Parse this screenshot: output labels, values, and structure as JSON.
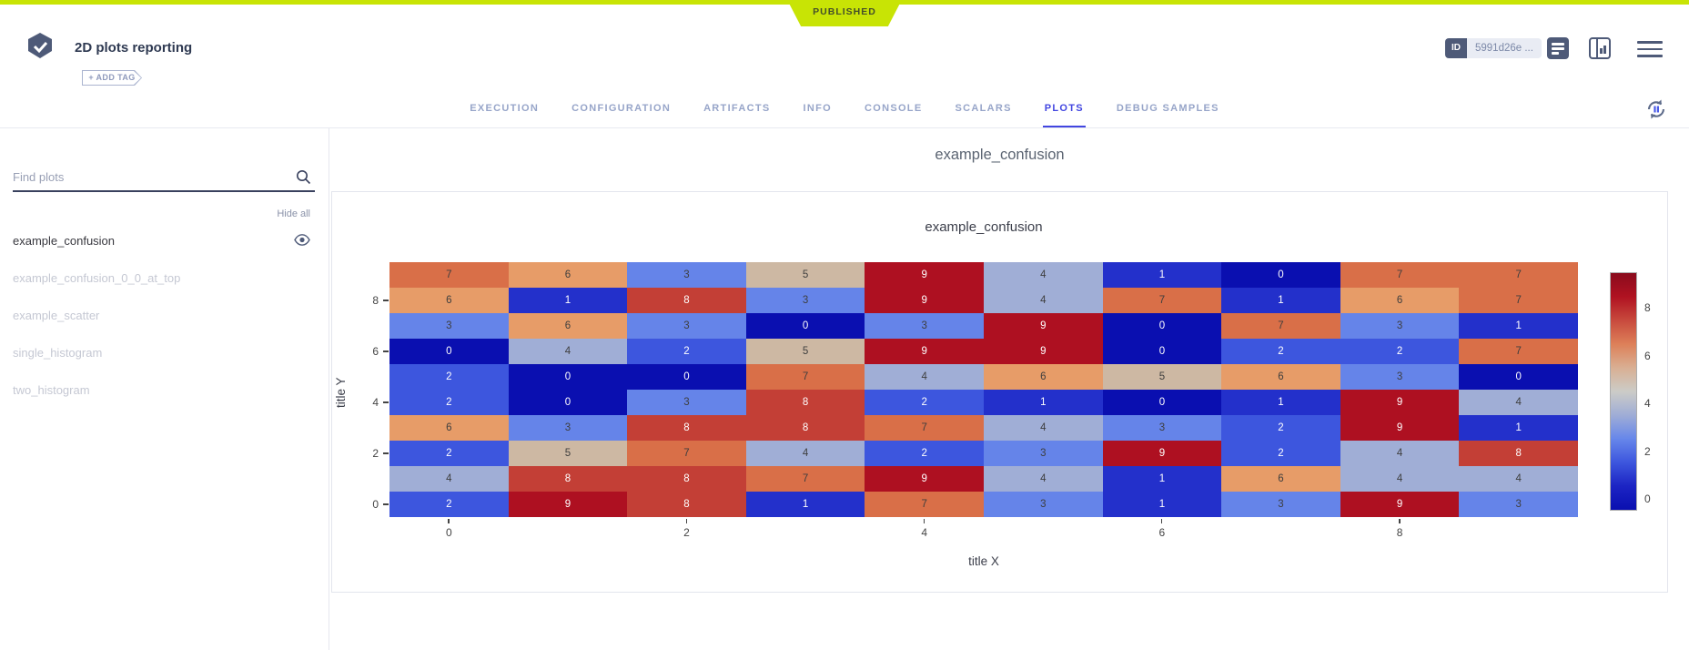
{
  "ribbon": {
    "status": "PUBLISHED",
    "color": "#c8e405"
  },
  "header": {
    "title": "2D plots reporting",
    "add_tag_label": "+ ADD TAG",
    "id_badge": {
      "label": "ID",
      "value": "5991d26e ..."
    }
  },
  "tabs": [
    {
      "label": "EXECUTION",
      "active": false
    },
    {
      "label": "CONFIGURATION",
      "active": false
    },
    {
      "label": "ARTIFACTS",
      "active": false
    },
    {
      "label": "INFO",
      "active": false
    },
    {
      "label": "CONSOLE",
      "active": false
    },
    {
      "label": "SCALARS",
      "active": false
    },
    {
      "label": "PLOTS",
      "active": true
    },
    {
      "label": "DEBUG SAMPLES",
      "active": false
    }
  ],
  "sidebar": {
    "search_placeholder": "Find plots",
    "hide_all_label": "Hide all",
    "items": [
      {
        "label": "example_confusion",
        "active": true,
        "visible": true
      },
      {
        "label": "example_confusion_0_0_at_top",
        "active": false,
        "visible": false
      },
      {
        "label": "example_scatter",
        "active": false,
        "visible": false
      },
      {
        "label": "single_histogram",
        "active": false,
        "visible": false
      },
      {
        "label": "two_histogram",
        "active": false,
        "visible": false
      }
    ]
  },
  "main": {
    "group_title": "example_confusion",
    "chart_data": {
      "type": "heatmap",
      "title": "example_confusion",
      "xlabel": "title X",
      "ylabel": "title Y",
      "x_range": [
        0,
        9
      ],
      "y_range": [
        0,
        9
      ],
      "x_ticks": [
        0,
        2,
        4,
        6,
        8
      ],
      "y_ticks": [
        8,
        6,
        4,
        2,
        0
      ],
      "rows_top_to_bottom_y": [
        9,
        8,
        7,
        6,
        5,
        4,
        3,
        2,
        1,
        0
      ],
      "matrix_rows_top_to_bottom": [
        [
          7,
          6,
          3,
          5,
          9,
          4,
          1,
          0,
          7,
          7
        ],
        [
          6,
          1,
          8,
          3,
          9,
          4,
          7,
          1,
          6,
          7
        ],
        [
          3,
          6,
          3,
          0,
          3,
          9,
          0,
          7,
          3,
          1
        ],
        [
          0,
          4,
          2,
          5,
          9,
          9,
          0,
          2,
          2,
          7
        ],
        [
          2,
          0,
          0,
          7,
          4,
          6,
          5,
          6,
          3,
          0
        ],
        [
          2,
          0,
          3,
          8,
          2,
          1,
          0,
          1,
          9,
          4
        ],
        [
          6,
          3,
          8,
          8,
          7,
          4,
          3,
          2,
          9,
          1
        ],
        [
          2,
          5,
          7,
          4,
          2,
          3,
          9,
          2,
          4,
          8
        ],
        [
          4,
          8,
          8,
          7,
          9,
          4,
          1,
          6,
          4,
          4
        ],
        [
          2,
          9,
          8,
          1,
          7,
          3,
          1,
          3,
          9,
          3
        ]
      ],
      "colorbar_ticks": [
        8,
        6,
        4,
        2,
        0
      ],
      "colorbar_range": [
        9.5,
        -0.5
      ],
      "colorscale_name": "RdBu reversed",
      "value_colors": {
        "0": "#0a0fb0",
        "1": "#2330cb",
        "2": "#3d56de",
        "3": "#6584e9",
        "4": "#a0aed6",
        "5": "#cdb8a3",
        "6": "#e79c68",
        "7": "#d96f48",
        "8": "#c33f36",
        "9": "#ae1021"
      },
      "light_text_values": [
        0,
        1,
        2,
        8,
        9
      ],
      "grid": false,
      "legend_position": "right-colorbar"
    }
  },
  "colors": {
    "ribbon_green": "#c8e405",
    "active_tab_blue": "#4246e0",
    "header_slate": "#4e5a78"
  }
}
